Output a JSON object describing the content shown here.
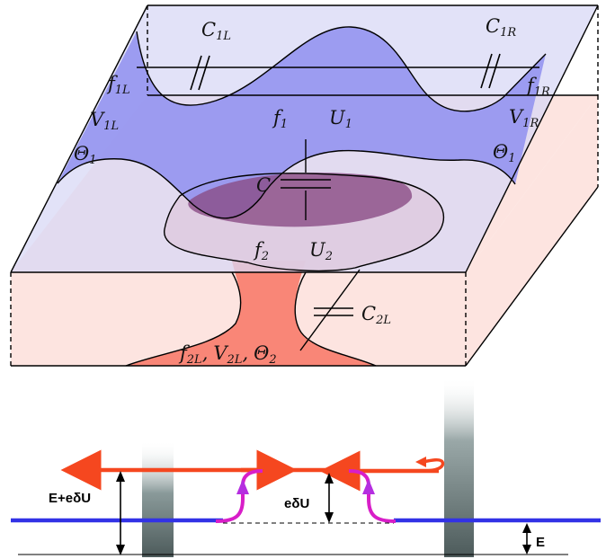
{
  "colors": {
    "top_plane": "#c9c9f4",
    "top_region": "#9b9bf0",
    "bottom_plane": "#fde4e0",
    "bottom_region": "#f7a39a",
    "channel": "#f98677",
    "overlap": "#8a4c86",
    "blue_line": "#3232e6",
    "orange_arrow": "#f5471f",
    "magenta_arrow": "#d81ec8",
    "barrier": "#5c6b6b"
  },
  "labels": {
    "c1l_main": "C",
    "c1l_sub": "1L",
    "c1r_main": "C",
    "c1r_sub": "1R",
    "f1l_main": "f",
    "f1l_sub": "1L",
    "v1l_main": "V",
    "v1l_sub": "1L",
    "theta1l_main": "Θ",
    "theta1l_sub": "1",
    "f1r_main": "f",
    "f1r_sub": "1R",
    "v1r_main": "V",
    "v1r_sub": "1R",
    "theta1r_main": "Θ",
    "theta1r_sub": "1",
    "f1_main": "f",
    "f1_sub": "1",
    "u1_main": "U",
    "u1_sub": "1",
    "c_main": "C",
    "f2_main": "f",
    "f2_sub": "2",
    "u2_main": "U",
    "u2_sub": "2",
    "c2l_main": "C",
    "c2l_sub": "2L",
    "f2l_main": "f",
    "f2l_sub": "2L",
    "v2l_main": "V",
    "v2l_sub": "2L",
    "theta2_main": "Θ",
    "theta2_sub": "2",
    "comma": ",",
    "e_plus": "E+eδU",
    "edu": "eδU",
    "e": "E"
  }
}
